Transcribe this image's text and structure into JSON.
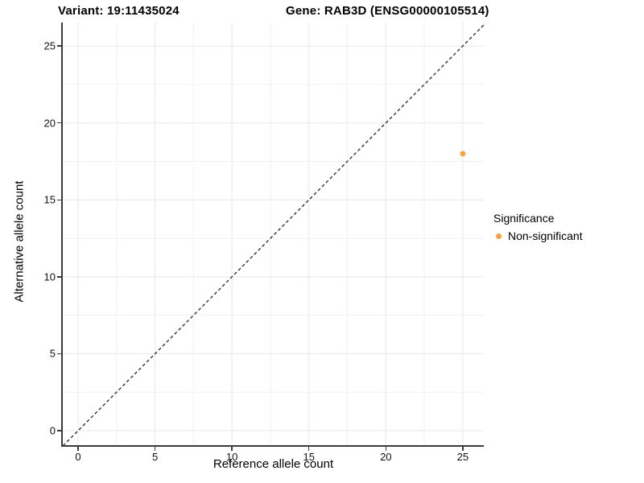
{
  "header": {
    "variant_title": "Variant: 19:11435024",
    "gene_title": "Gene: RAB3D (ENSG00000105514)"
  },
  "chart_data": {
    "type": "scatter",
    "title": "Variant: 19:11435024   Gene: RAB3D (ENSG00000105514)",
    "xlabel": "Reference allele count",
    "ylabel": "Alternative allele count",
    "xlim": [
      -1,
      26.4
    ],
    "ylim": [
      -1,
      26.5
    ],
    "x_ticks": [
      0,
      5,
      10,
      15,
      20,
      25
    ],
    "y_ticks": [
      0,
      5,
      10,
      15,
      20,
      25
    ],
    "x_minor_gridlines": [
      2.5,
      7.5,
      12.5,
      17.5,
      22.5
    ],
    "y_minor_gridlines": [
      2.5,
      7.5,
      12.5,
      17.5,
      22.5
    ],
    "grid": true,
    "series": [
      {
        "name": "Non-significant",
        "color": "#F9A242",
        "points": [
          {
            "x": 25,
            "y": 18
          }
        ]
      }
    ],
    "reference_line": {
      "kind": "identity y=x",
      "style": "dashed",
      "color": "#141414"
    },
    "legend_position": "right"
  },
  "legend": {
    "title": "Significance",
    "items": [
      {
        "label": "Non-significant",
        "color": "#F9A242",
        "marker": "dot"
      }
    ]
  },
  "colors": {
    "background": "#FFFFFF",
    "gridline_major": "#E7E7E7",
    "gridline_minor": "#F1F1F1",
    "axis_line": "#3B3B3B",
    "tick_mark": "#3B3B3B",
    "text": "#000000",
    "point": "#F9A242"
  }
}
